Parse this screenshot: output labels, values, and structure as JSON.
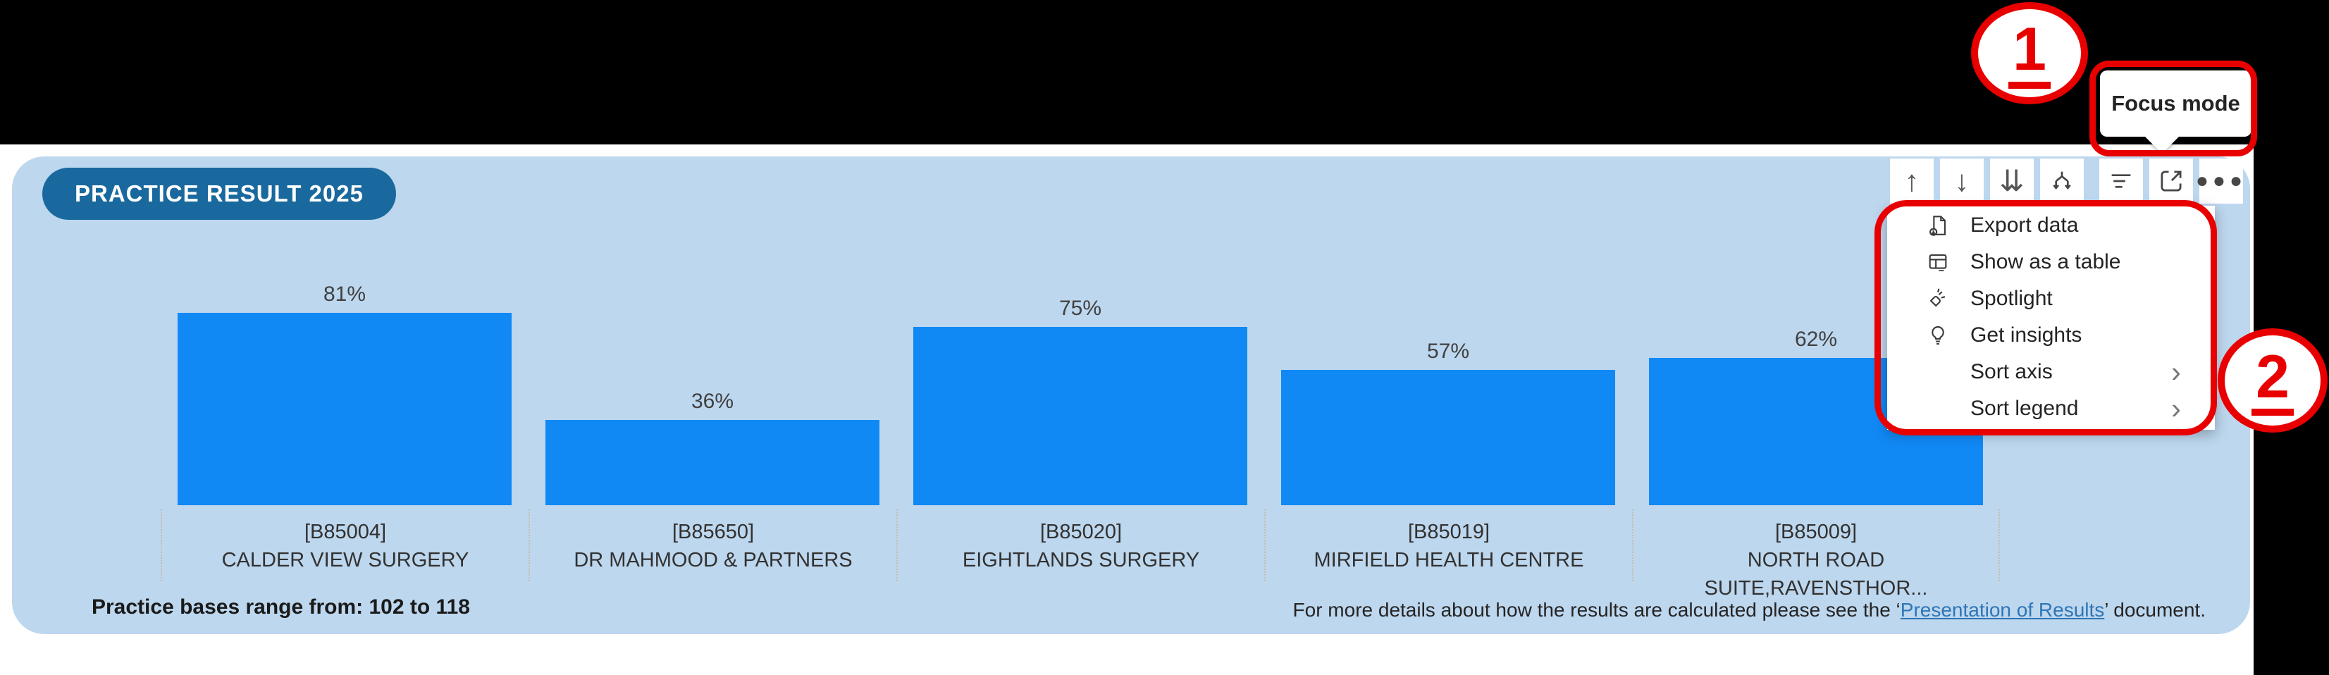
{
  "panel": {
    "title_badge": "PRACTICE RESULT 2025",
    "background": "#BDD7EE",
    "badge_color": "#19699E"
  },
  "annotations": {
    "step_1": "1",
    "step_2": "2",
    "red_color": "#E80000"
  },
  "tooltip": {
    "text": "Focus mode"
  },
  "toolbar": {
    "buttons": [
      {
        "name": "drill-up",
        "icon": "arrow-up-icon"
      },
      {
        "name": "drill-down",
        "icon": "arrow-down-icon"
      },
      {
        "name": "expand-all-down",
        "icon": "double-arrow-down-icon"
      },
      {
        "name": "drill-mode",
        "icon": "fork-arrow-down-icon"
      },
      {
        "name": "filters",
        "icon": "filter-lines-icon"
      },
      {
        "name": "focus-mode",
        "icon": "focus-expand-icon"
      },
      {
        "name": "more-options",
        "icon": "ellipsis-icon"
      }
    ]
  },
  "context_menu": {
    "items": [
      {
        "label": "Export data",
        "icon": "export-icon",
        "submenu": false
      },
      {
        "label": "Show as a table",
        "icon": "table-icon",
        "submenu": false
      },
      {
        "label": "Spotlight",
        "icon": "spotlight-icon",
        "submenu": false
      },
      {
        "label": "Get insights",
        "icon": "insights-icon",
        "submenu": false
      },
      {
        "label": "Sort axis",
        "icon": null,
        "submenu": true
      },
      {
        "label": "Sort legend",
        "icon": null,
        "submenu": true
      }
    ],
    "submenu_chevron": "›"
  },
  "chart_data": {
    "type": "bar",
    "title": "PRACTICE RESULT 2025",
    "category_codes": [
      "[B85004]",
      "[B85650]",
      "[B85020]",
      "[B85019]",
      "[B85009]"
    ],
    "categories": [
      "CALDER VIEW SURGERY",
      "DR MAHMOOD & PARTNERS",
      "EIGHTLANDS SURGERY",
      "MIRFIELD HEALTH CENTRE",
      "NORTH ROAD SUITE,RAVENSTHOR..."
    ],
    "values": [
      81,
      36,
      75,
      57,
      62
    ],
    "value_labels": [
      "81%",
      "36%",
      "75%",
      "57%",
      "62%"
    ],
    "ylim": [
      0,
      100
    ],
    "grid": false,
    "legend": "none",
    "bar_color": "#1189F5"
  },
  "footer": {
    "bases_text": "Practice bases range from: 102 to 118",
    "note_prefix": "For more details about how the results are calculated please see the ‘",
    "note_link": "Presentation of Results",
    "note_suffix": "’ document."
  }
}
